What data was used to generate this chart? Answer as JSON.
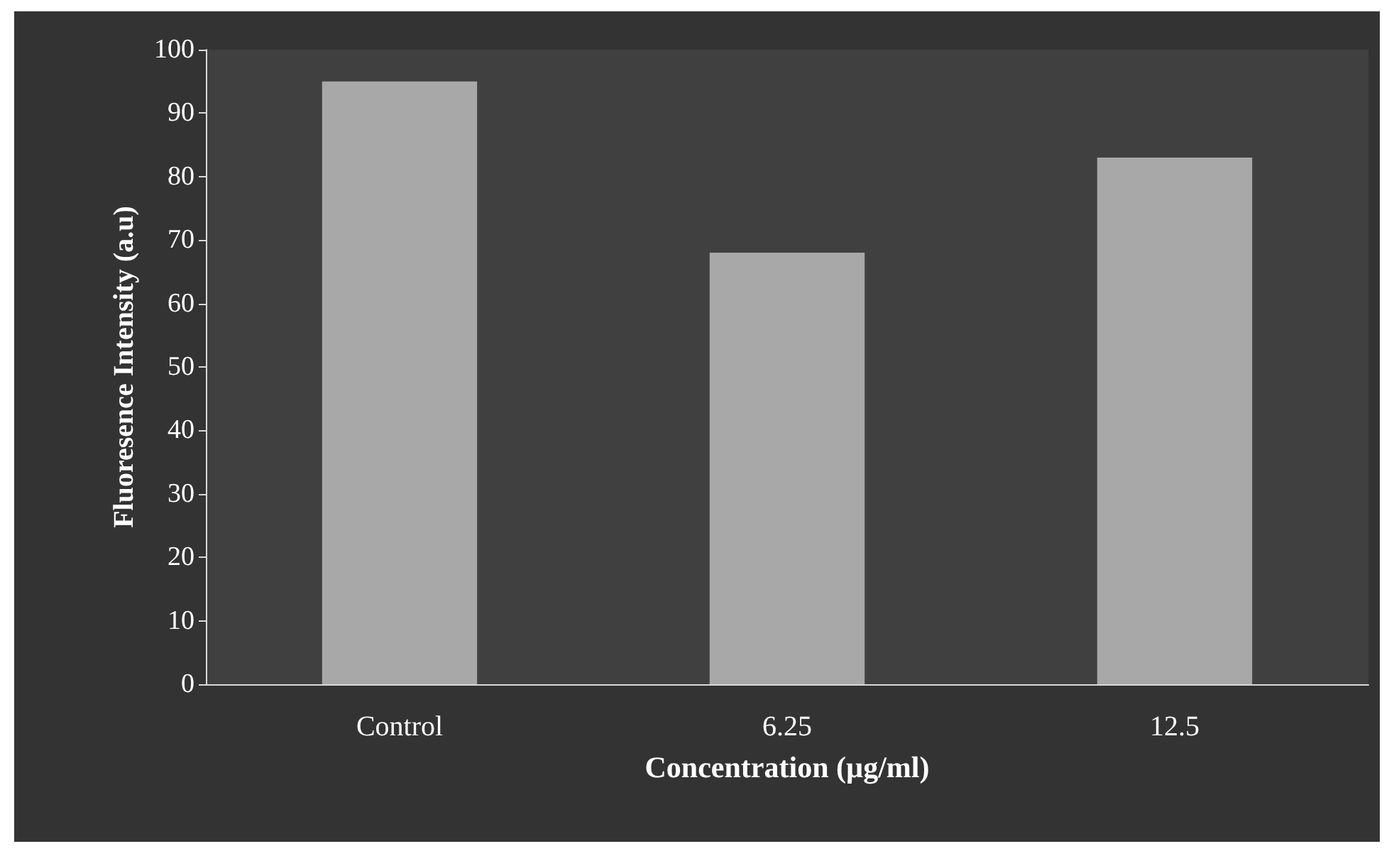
{
  "chart_data": {
    "type": "bar",
    "xlabel": "Concentration (µg/ml)",
    "ylabel": "Fluoresence Intensity (a.u)",
    "categories": [
      "Control",
      "6.25",
      "12.5"
    ],
    "values": [
      95,
      68,
      83
    ],
    "color": "#a8a8a8",
    "ylim": [
      0,
      100
    ],
    "yticks": [
      0,
      10,
      20,
      30,
      40,
      50,
      60,
      70,
      80,
      90,
      100
    ],
    "grid": false
  }
}
